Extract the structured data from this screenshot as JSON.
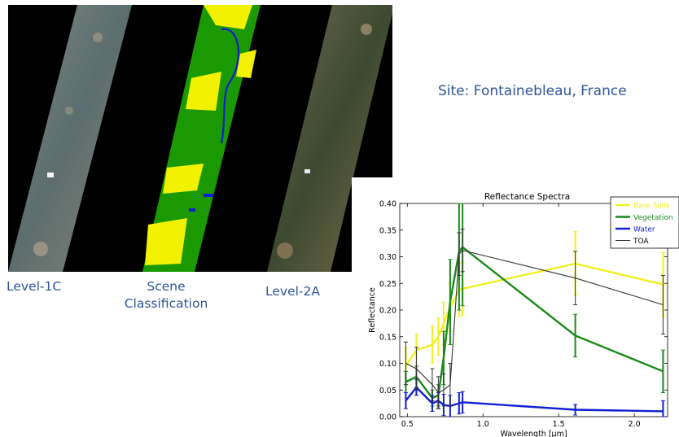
{
  "captions": {
    "level1c": "Level-1C",
    "scene_line1": "Scene",
    "scene_line2": "Classification",
    "level2a": "Level-2A"
  },
  "site_label": "Site: Fontainebleau, France",
  "colors": {
    "caption_text": "#2f5597",
    "bare_soils": "#f0f020",
    "vegetation": "#1a8a1a",
    "water": "#1020d0",
    "toa": "#333333",
    "classification_green": "#1a9a00",
    "classification_yellow": "#f2f200"
  },
  "chart_data": {
    "type": "line",
    "title": "Reflectance Spectra",
    "xlabel": "Wavelength [μm]",
    "ylabel": "Reflectance",
    "xlim": [
      0.45,
      2.22
    ],
    "ylim": [
      0.0,
      0.4
    ],
    "xticks": [
      0.5,
      1.0,
      1.5,
      2.0
    ],
    "xtick_labels": [
      "0.5",
      "1.0",
      "1.5",
      "2.0"
    ],
    "yticks": [
      0.0,
      0.05,
      0.1,
      0.15,
      0.2,
      0.25,
      0.3,
      0.35,
      0.4
    ],
    "ytick_labels": [
      "0.00",
      "0.05",
      "0.10",
      "0.15",
      "0.20",
      "0.25",
      "0.30",
      "0.35",
      "0.40"
    ],
    "legend_position": "top-right",
    "x": [
      0.49,
      0.56,
      0.665,
      0.705,
      0.74,
      0.783,
      0.842,
      0.865,
      1.61,
      2.19
    ],
    "series": [
      {
        "name": "Bare Soils",
        "color": "#f0f020",
        "width": 2.4,
        "values": [
          0.095,
          0.125,
          0.135,
          0.15,
          0.175,
          0.205,
          0.238,
          0.24,
          0.287,
          0.248
        ],
        "errors": [
          0.035,
          0.03,
          0.035,
          0.035,
          0.04,
          0.045,
          0.05,
          0.05,
          0.06,
          0.06
        ]
      },
      {
        "name": "Vegetation",
        "color": "#1a8a1a",
        "width": 2.4,
        "values": [
          0.065,
          0.075,
          0.035,
          0.04,
          0.11,
          0.215,
          0.31,
          0.318,
          0.152,
          0.085
        ],
        "errors": [
          0.02,
          0.02,
          0.015,
          0.02,
          0.05,
          0.08,
          0.11,
          0.11,
          0.04,
          0.04
        ]
      },
      {
        "name": "Water",
        "color": "#1020d0",
        "width": 2.4,
        "values": [
          0.03,
          0.055,
          0.025,
          0.03,
          0.022,
          0.02,
          0.025,
          0.027,
          0.013,
          0.01
        ],
        "errors": [
          0.015,
          0.015,
          0.015,
          0.015,
          0.02,
          0.02,
          0.02,
          0.02,
          0.01,
          0.02
        ]
      },
      {
        "name": "TOA",
        "color": "#333333",
        "width": 1.1,
        "values": [
          0.1,
          0.09,
          0.06,
          0.045,
          0.05,
          0.06,
          0.305,
          0.312,
          0.26,
          0.21
        ],
        "errors": [
          0.04,
          0.04,
          0.03,
          0.03,
          0.03,
          0.04,
          0.04,
          0.04,
          0.05,
          0.055
        ]
      }
    ]
  }
}
